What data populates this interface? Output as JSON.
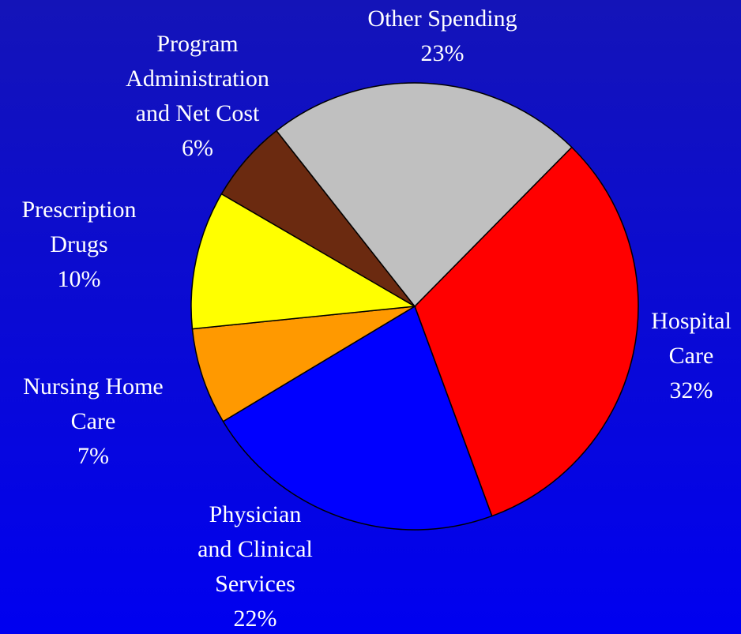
{
  "chart_data": {
    "type": "pie",
    "categories": [
      [
        "Hospital",
        "Care"
      ],
      [
        "Physician",
        "and Clinical",
        "Services"
      ],
      [
        "Nursing Home",
        "Care"
      ],
      [
        "Prescription",
        "Drugs"
      ],
      [
        "Program",
        "Administration",
        "and Net Cost"
      ],
      [
        "Other Spending"
      ]
    ],
    "values": [
      32,
      22,
      7,
      10,
      6,
      23
    ],
    "value_labels": [
      "32%",
      "22%",
      "7%",
      "10%",
      "6%",
      "23%"
    ],
    "colors": [
      "#ff0000",
      "#0000ff",
      "#ff9900",
      "#ffff00",
      "#6b2a10",
      "#c0c0c0"
    ]
  }
}
